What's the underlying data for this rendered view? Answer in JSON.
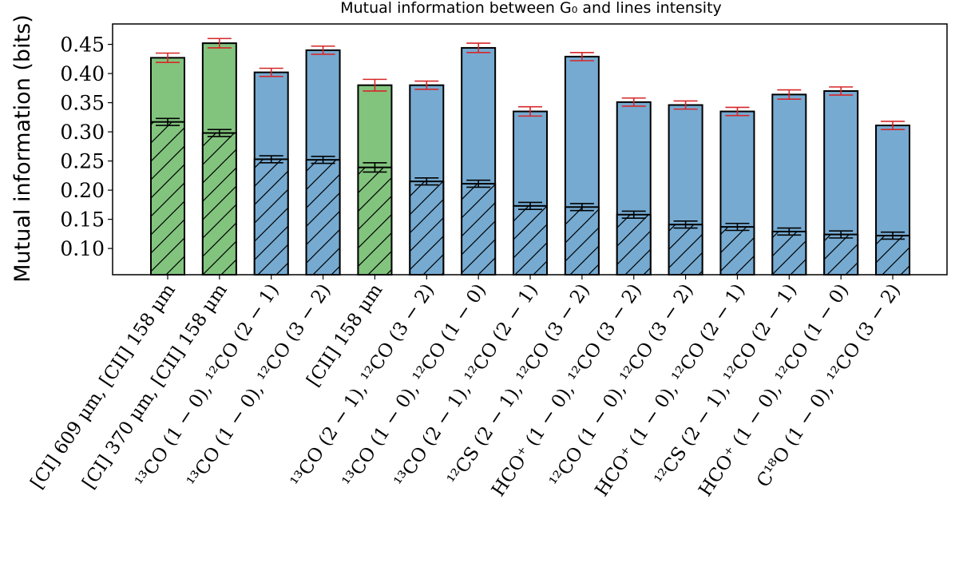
{
  "chart_data": {
    "type": "bar",
    "title": "Mutual information between G₀ and lines intensity",
    "xlabel": "",
    "ylabel": "Mutual information (bits)",
    "ylim": [
      0.055,
      0.485
    ],
    "yticks": [
      0.1,
      0.15,
      0.2,
      0.25,
      0.3,
      0.35,
      0.4,
      0.45
    ],
    "ytick_labels": [
      "0.10",
      "0.15",
      "0.20",
      "0.25",
      "0.30",
      "0.35",
      "0.40",
      "0.45"
    ],
    "categories": [
      "[CI] 609 μm, [CII] 158 μm",
      "[CI] 370 μm, [CII] 158 μm",
      "¹³CO (1 − 0), ¹²CO (2 − 1)",
      "¹³CO (1 − 0), ¹²CO (3 − 2)",
      "[CII] 158 μm",
      "¹³CO (2 − 1), ¹²CO (3 − 2)",
      "¹³CO (1 − 0), ¹²CO (1 − 0)",
      "¹³CO (2 − 1), ¹²CO (2 − 1)",
      "¹²CS (2 − 1), ¹²CO (3 − 2)",
      "HCO⁺ (1 − 0), ¹²CO (3 − 2)",
      "¹²CO (1 − 0), ¹²CO (3 − 2)",
      "HCO⁺ (1 − 0), ¹²CO (2 − 1)",
      "¹²CS (2 − 1), ¹²CO (2 − 1)",
      "HCO⁺ (1 − 0), ¹²CO (1 − 0)",
      "C¹⁸O (1 − 0), ¹²CO (3 − 2)"
    ],
    "series": [
      {
        "name": "total",
        "values": [
          0.427,
          0.452,
          0.402,
          0.44,
          0.38,
          0.38,
          0.444,
          0.335,
          0.429,
          0.351,
          0.346,
          0.335,
          0.364,
          0.37,
          0.311
        ],
        "errors": [
          0.008,
          0.008,
          0.007,
          0.007,
          0.01,
          0.007,
          0.008,
          0.008,
          0.007,
          0.007,
          0.007,
          0.007,
          0.008,
          0.007,
          0.007
        ]
      },
      {
        "name": "hatched",
        "values": [
          0.317,
          0.298,
          0.253,
          0.252,
          0.239,
          0.215,
          0.211,
          0.173,
          0.171,
          0.158,
          0.141,
          0.137,
          0.129,
          0.124,
          0.122
        ],
        "errors": [
          0.006,
          0.006,
          0.006,
          0.006,
          0.008,
          0.006,
          0.006,
          0.006,
          0.006,
          0.006,
          0.006,
          0.006,
          0.006,
          0.006,
          0.006
        ]
      }
    ],
    "bar_group": [
      "green",
      "green",
      "blue",
      "blue",
      "green",
      "blue",
      "blue",
      "blue",
      "blue",
      "blue",
      "blue",
      "blue",
      "blue",
      "blue",
      "blue"
    ],
    "colors": {
      "green": "#82c47e",
      "blue": "#76aad1",
      "edge": "#000000",
      "error_total": "#d62728",
      "error_hatched": "#000000"
    },
    "grid": false,
    "legend": "none"
  }
}
